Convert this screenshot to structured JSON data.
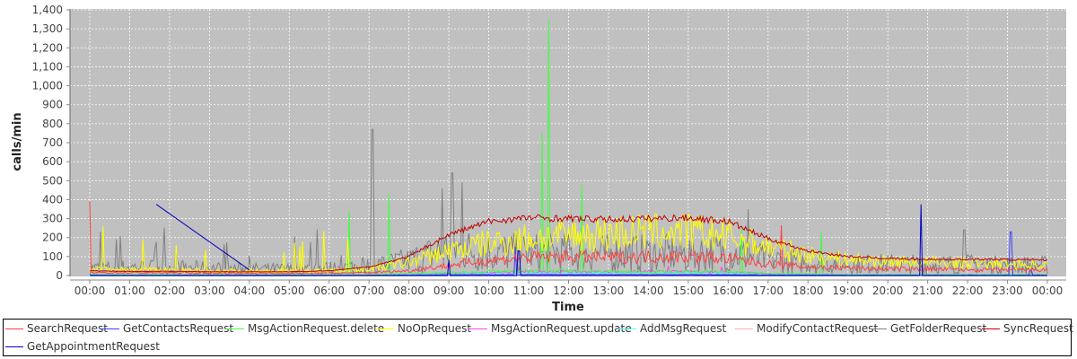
{
  "chart_data": {
    "type": "line",
    "xlabel": "Time",
    "ylabel": "calls/min",
    "ylim": [
      0,
      1400
    ],
    "yticks": [
      "0",
      "100",
      "200",
      "300",
      "400",
      "500",
      "600",
      "700",
      "800",
      "900",
      "1,000",
      "1,100",
      "1,200",
      "1,300",
      "1,400"
    ],
    "xticks": [
      "00:00",
      "01:00",
      "02:00",
      "03:00",
      "04:00",
      "05:00",
      "06:00",
      "07:00",
      "08:00",
      "09:00",
      "10:00",
      "11:00",
      "12:00",
      "13:00",
      "14:00",
      "15:00",
      "16:00",
      "17:00",
      "18:00",
      "19:00",
      "20:00",
      "21:00",
      "22:00",
      "23:00",
      "00:00"
    ],
    "grid": true,
    "legend": "bottom",
    "series": [
      {
        "name": "SearchRequest",
        "color": "#ff4040",
        "hourly": [
          15,
          15,
          15,
          12,
          12,
          12,
          12,
          15,
          25,
          55,
          80,
          95,
          100,
          95,
          100,
          100,
          90,
          60,
          45,
          40,
          35,
          35,
          30,
          30,
          30
        ],
        "spikes": [
          [
            "00:00",
            390
          ],
          [
            "17:20",
            265
          ]
        ]
      },
      {
        "name": "GetContactsRequest",
        "color": "#4040ff",
        "hourly": [
          2,
          2,
          2,
          2,
          2,
          2,
          2,
          2,
          3,
          5,
          5,
          5,
          5,
          5,
          5,
          5,
          5,
          3,
          3,
          2,
          2,
          2,
          2,
          2,
          2
        ],
        "spikes": [
          [
            "10:40",
            150
          ],
          [
            "23:05",
            230
          ],
          [
            "23:35",
            30
          ]
        ]
      },
      {
        "name": "MsgActionRequest.delete",
        "color": "#40ff40",
        "hourly": [
          5,
          5,
          5,
          5,
          5,
          5,
          5,
          5,
          10,
          15,
          20,
          25,
          25,
          20,
          20,
          20,
          20,
          10,
          8,
          5,
          5,
          5,
          5,
          5,
          5
        ],
        "spikes": [
          [
            "06:30",
            340
          ],
          [
            "07:30",
            430
          ],
          [
            "11:20",
            750
          ],
          [
            "11:30",
            1350
          ],
          [
            "12:20",
            480
          ],
          [
            "16:20",
            250
          ],
          [
            "18:20",
            230
          ]
        ]
      },
      {
        "name": "NoOpRequest",
        "color": "#ffff00",
        "hourly": [
          35,
          30,
          30,
          25,
          25,
          25,
          25,
          35,
          70,
          130,
          170,
          195,
          210,
          220,
          230,
          230,
          205,
          150,
          110,
          85,
          75,
          70,
          65,
          62,
          55
        ],
        "spikes": [
          [
            "00:20",
            260
          ],
          [
            "01:20",
            190
          ],
          [
            "02:10",
            160
          ]
        ]
      },
      {
        "name": "MsgActionRequest.update",
        "color": "#ff40ff",
        "hourly": [
          2,
          2,
          2,
          2,
          2,
          2,
          2,
          3,
          5,
          10,
          15,
          20,
          20,
          20,
          20,
          20,
          20,
          10,
          5,
          3,
          3,
          3,
          3,
          3,
          3
        ],
        "spikes": [
          [
            "14:30",
            50
          ],
          [
            "15:50",
            45
          ]
        ]
      },
      {
        "name": "AddMsgRequest",
        "color": "#40ffff",
        "hourly": [
          2,
          2,
          2,
          2,
          2,
          2,
          2,
          3,
          5,
          8,
          10,
          12,
          12,
          12,
          12,
          12,
          10,
          8,
          5,
          3,
          3,
          3,
          3,
          3,
          3
        ],
        "spikes": []
      },
      {
        "name": "ModifyContactRequest",
        "color": "#ffafaf",
        "hourly": [
          1,
          1,
          1,
          1,
          1,
          1,
          1,
          1,
          2,
          3,
          3,
          3,
          3,
          3,
          3,
          3,
          3,
          2,
          2,
          1,
          1,
          1,
          1,
          1,
          1
        ],
        "spikes": []
      },
      {
        "name": "GetFolderRequest",
        "color": "#808080",
        "hourly": [
          40,
          45,
          45,
          40,
          35,
          35,
          40,
          50,
          80,
          140,
          125,
          120,
          120,
          115,
          115,
          115,
          120,
          85,
          70,
          65,
          60,
          60,
          60,
          55,
          55
        ],
        "spikes": [
          [
            "07:05",
            770
          ],
          [
            "08:50",
            460
          ],
          [
            "09:05",
            540
          ],
          [
            "09:20",
            490
          ],
          [
            "16:30",
            350
          ],
          [
            "21:55",
            240
          ]
        ]
      },
      {
        "name": "SyncRequest",
        "color": "#c00000",
        "hourly": [
          25,
          22,
          22,
          20,
          20,
          20,
          25,
          45,
          100,
          215,
          285,
          305,
          300,
          295,
          300,
          305,
          285,
          195,
          130,
          100,
          90,
          85,
          85,
          85,
          80
        ],
        "spikes": []
      },
      {
        "name": "GetAppointmentRequest",
        "color": "#0000c0",
        "hourly": [
          0,
          0,
          0,
          0,
          0,
          0,
          0,
          0,
          0,
          0,
          0,
          0,
          0,
          0,
          0,
          0,
          0,
          0,
          0,
          0,
          0,
          0,
          0,
          0,
          0
        ],
        "line": [
          [
            "01:40",
            375
          ],
          [
            "04:00",
            30
          ]
        ],
        "spikes": [
          [
            "09:00",
            80
          ],
          [
            "10:45",
            130
          ],
          [
            "20:50",
            375
          ]
        ]
      }
    ]
  }
}
